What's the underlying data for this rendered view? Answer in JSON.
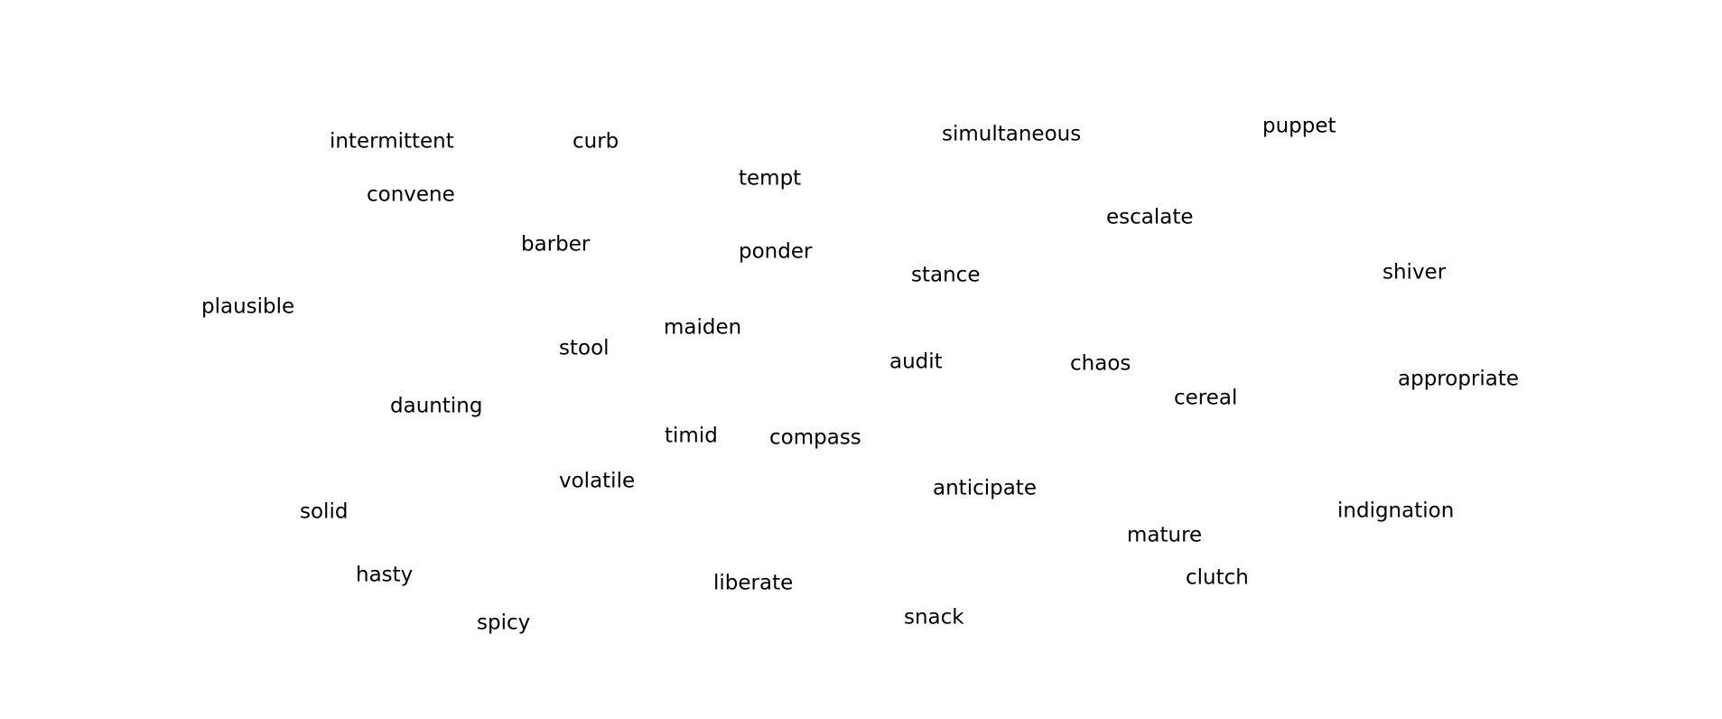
{
  "words": [
    "intermittent",
    "curb",
    "simultaneous",
    "puppet",
    "tempt",
    "convene",
    "escalate",
    "barber",
    "ponder",
    "stance",
    "shiver",
    "plausible",
    "maiden",
    "stool",
    "audit",
    "chaos",
    "appropriate",
    "cereal",
    "daunting",
    "timid",
    "compass",
    "volatile",
    "anticipate",
    "solid",
    "indignation",
    "mature",
    "hasty",
    "liberate",
    "clutch",
    "snack",
    "spicy"
  ],
  "colors": {
    "text": "#000000",
    "background": "#ffffff"
  }
}
